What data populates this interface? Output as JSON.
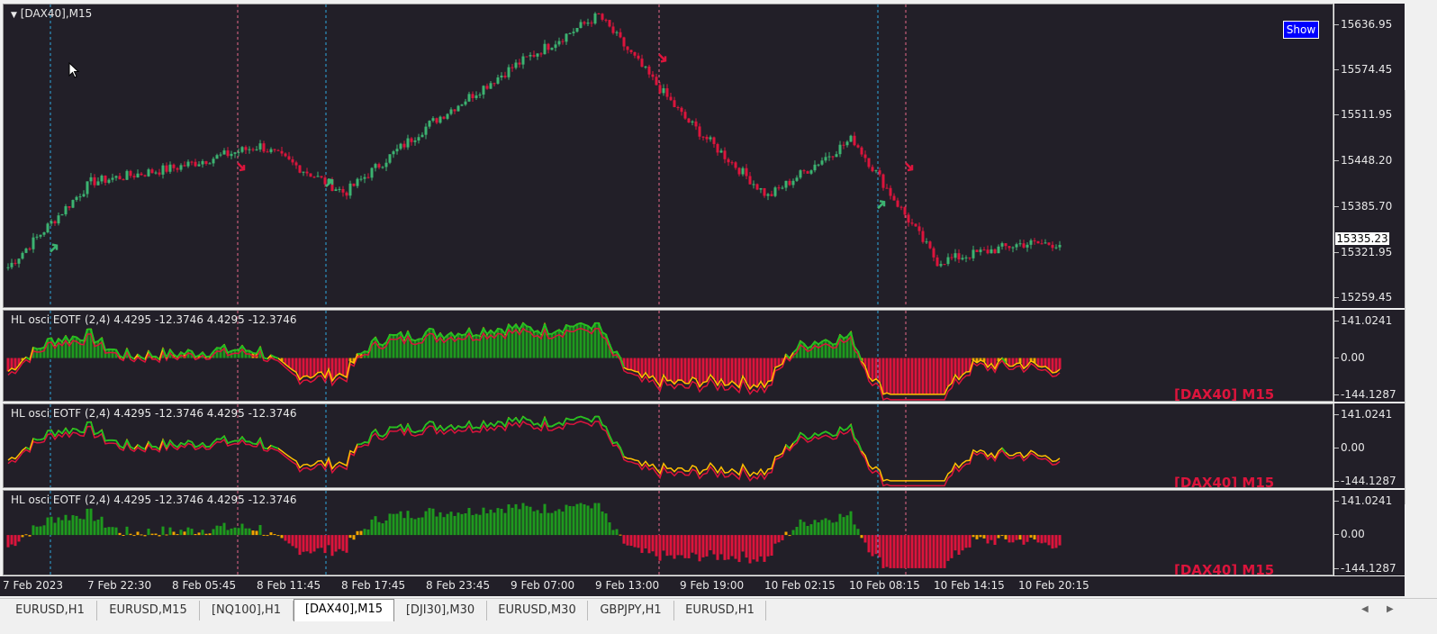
{
  "main": {
    "label": "[DAX40],M15",
    "show_button": "Show",
    "current_price": "15335.23",
    "ticks": [
      {
        "label": "15636.95",
        "value": 15636.95
      },
      {
        "label": "15574.45",
        "value": 15574.45
      },
      {
        "label": "15511.95",
        "value": 15511.95
      },
      {
        "label": "15448.20",
        "value": 15448.2
      },
      {
        "label": "15385.70",
        "value": 15385.7
      },
      {
        "label": "15321.95",
        "value": 15321.95
      },
      {
        "label": "15259.45",
        "value": 15259.45
      }
    ],
    "colors": {
      "bull": "#3cb371",
      "bear": "#dc143c",
      "bg": "#221f28"
    }
  },
  "indicators": [
    {
      "label": "HL osci EOTF (2,4) 4.4295 -12.3746 4.4295 -12.3746",
      "symbol": "[DAX40] M15",
      "ticks": [
        "141.0241",
        "0.00",
        "-144.1287"
      ],
      "mode": "both"
    },
    {
      "label": "HL osci EOTF (2,4) 4.4295 -12.3746 4.4295 -12.3746",
      "symbol": "[DAX40] M15",
      "ticks": [
        "141.0241",
        "0.00",
        "-144.1287"
      ],
      "mode": "lines"
    },
    {
      "label": "HL osci EOTF (2,4) 4.4295 -12.3746 4.4295 -12.3746",
      "symbol": "[DAX40] M15",
      "ticks": [
        "141.0241",
        "0.00",
        "-144.1287"
      ],
      "mode": "hist"
    }
  ],
  "time_axis": [
    "7 Feb 2023",
    "7 Feb 22:30",
    "8 Feb 05:45",
    "8 Feb 11:45",
    "8 Feb 17:45",
    "8 Feb 23:45",
    "9 Feb 07:00",
    "9 Feb 13:00",
    "9 Feb 19:00",
    "10 Feb 02:15",
    "10 Feb 08:15",
    "10 Feb 14:15",
    "10 Feb 20:15"
  ],
  "tabs": [
    {
      "label": "EURUSD,H1",
      "active": false
    },
    {
      "label": "EURUSD,M15",
      "active": false
    },
    {
      "label": "[NQ100],H1",
      "active": false
    },
    {
      "label": "[DAX40],M15",
      "active": true
    },
    {
      "label": "[DJI30],M30",
      "active": false
    },
    {
      "label": "EURUSD,M30",
      "active": false
    },
    {
      "label": "GBPJPY,H1",
      "active": false
    },
    {
      "label": "EURUSD,H1",
      "active": false
    }
  ],
  "chart_data": {
    "type": "line",
    "x": [
      "7 Feb 2023",
      "7 Feb 22:30",
      "8 Feb 05:45",
      "8 Feb 11:45",
      "8 Feb 17:45",
      "8 Feb 23:45",
      "9 Feb 07:00",
      "9 Feb 13:00",
      "9 Feb 19:00",
      "10 Feb 02:15",
      "10 Feb 08:15",
      "10 Feb 14:15",
      "10 Feb 20:15"
    ],
    "series": [
      {
        "values": [
          15300,
          15420,
          15440,
          15470,
          15405,
          15500,
          15580,
          15650,
          15510,
          15400,
          15480,
          15310,
          15335
        ]
      }
    ],
    "ylim": [
      15245,
      15665
    ]
  }
}
